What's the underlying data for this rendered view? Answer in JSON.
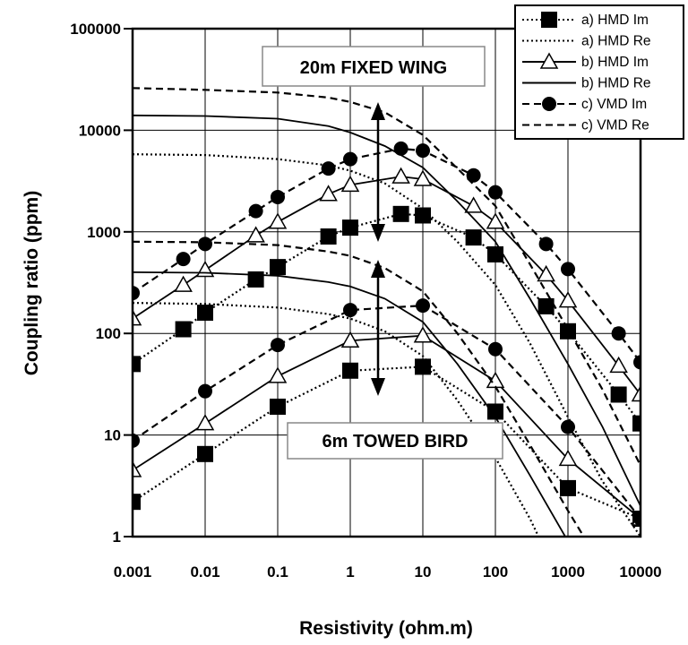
{
  "chart_data": {
    "type": "line",
    "xlabel": "Resistivity (ohm.m)",
    "ylabel": "Coupling ratio (ppm)",
    "xscale": "log",
    "yscale": "log",
    "xlim": [
      0.001,
      10000
    ],
    "ylim": [
      1,
      100000
    ],
    "x_ticks": [
      "0.001",
      "0.01",
      "0.1",
      "1",
      "10",
      "100",
      "1000",
      "10000"
    ],
    "y_ticks": [
      "1",
      "10",
      "100",
      "1000",
      "10000",
      "100000"
    ],
    "grid": true,
    "legend_position": "top-right",
    "annotations": [
      "20m FIXED WING",
      "6m TOWED BIRD"
    ],
    "series": [
      {
        "name": "a) HMD Im",
        "group": "20m FIXED WING",
        "line": "dotted",
        "marker": "filled-square",
        "points": [
          [
            0.001,
            50
          ],
          [
            0.005,
            110
          ],
          [
            0.01,
            160
          ],
          [
            0.05,
            340
          ],
          [
            0.1,
            450
          ],
          [
            0.5,
            900
          ],
          [
            1,
            1100
          ],
          [
            5,
            1500
          ],
          [
            10,
            1450
          ],
          [
            50,
            880
          ],
          [
            100,
            600
          ],
          [
            500,
            185
          ],
          [
            1000,
            105
          ],
          [
            5000,
            25
          ],
          [
            10000,
            13
          ]
        ]
      },
      {
        "name": "a) HMD Re",
        "group": "20m FIXED WING",
        "line": "dotted",
        "marker": "none",
        "points": [
          [
            0.001,
            5800
          ],
          [
            0.01,
            5700
          ],
          [
            0.1,
            5200
          ],
          [
            0.5,
            4500
          ],
          [
            1,
            4000
          ],
          [
            3,
            3000
          ],
          [
            10,
            1700
          ],
          [
            30,
            800
          ],
          [
            100,
            300
          ],
          [
            300,
            80
          ],
          [
            1000,
            15
          ],
          [
            3000,
            3.5
          ],
          [
            10000,
            1
          ]
        ]
      },
      {
        "name": "b) HMD Im",
        "group": "20m FIXED WING",
        "line": "solid",
        "marker": "open-triangle",
        "points": [
          [
            0.001,
            140
          ],
          [
            0.005,
            300
          ],
          [
            0.01,
            420
          ],
          [
            0.05,
            920
          ],
          [
            0.1,
            1250
          ],
          [
            0.5,
            2350
          ],
          [
            1,
            2900
          ],
          [
            5,
            3500
          ],
          [
            10,
            3300
          ],
          [
            50,
            1800
          ],
          [
            100,
            1250
          ],
          [
            500,
            380
          ],
          [
            1000,
            210
          ],
          [
            5000,
            48
          ],
          [
            10000,
            25
          ]
        ]
      },
      {
        "name": "b) HMD Re",
        "group": "20m FIXED WING",
        "line": "solid",
        "marker": "none",
        "points": [
          [
            0.001,
            14000
          ],
          [
            0.01,
            13800
          ],
          [
            0.1,
            13000
          ],
          [
            0.5,
            11000
          ],
          [
            1,
            9500
          ],
          [
            3,
            7000
          ],
          [
            10,
            4300
          ],
          [
            30,
            2000
          ],
          [
            100,
            800
          ],
          [
            300,
            220
          ],
          [
            1000,
            50
          ],
          [
            3000,
            12
          ],
          [
            10000,
            2
          ]
        ]
      },
      {
        "name": "c) VMD Im",
        "group": "20m FIXED WING",
        "line": "dashed",
        "marker": "filled-circle",
        "points": [
          [
            0.001,
            250
          ],
          [
            0.005,
            540
          ],
          [
            0.01,
            760
          ],
          [
            0.05,
            1600
          ],
          [
            0.1,
            2200
          ],
          [
            0.5,
            4200
          ],
          [
            1,
            5200
          ],
          [
            5,
            6600
          ],
          [
            10,
            6300
          ],
          [
            50,
            3600
          ],
          [
            100,
            2450
          ],
          [
            500,
            760
          ],
          [
            1000,
            430
          ],
          [
            5000,
            100
          ],
          [
            10000,
            52
          ]
        ]
      },
      {
        "name": "c) VMD Re",
        "group": "20m FIXED WING",
        "line": "dashed",
        "marker": "none",
        "points": [
          [
            0.001,
            26000
          ],
          [
            0.01,
            25000
          ],
          [
            0.1,
            23500
          ],
          [
            0.5,
            21000
          ],
          [
            1,
            19000
          ],
          [
            3,
            15000
          ],
          [
            10,
            9000
          ],
          [
            30,
            4200
          ],
          [
            100,
            1800
          ],
          [
            300,
            480
          ],
          [
            1000,
            110
          ],
          [
            3000,
            28
          ],
          [
            10000,
            5
          ]
        ]
      },
      {
        "name": "a) HMD Im",
        "group": "6m TOWED BIRD",
        "line": "dotted",
        "marker": "filled-square",
        "points": [
          [
            0.001,
            2.2
          ],
          [
            0.01,
            6.5
          ],
          [
            0.1,
            19
          ],
          [
            1,
            43
          ],
          [
            10,
            47
          ],
          [
            100,
            17
          ],
          [
            1000,
            3
          ],
          [
            10000,
            1.5
          ]
        ]
      },
      {
        "name": "a) HMD Re",
        "group": "6m TOWED BIRD",
        "line": "dotted",
        "marker": "none",
        "points": [
          [
            0.001,
            200
          ],
          [
            0.01,
            195
          ],
          [
            0.1,
            180
          ],
          [
            0.5,
            155
          ],
          [
            1,
            140
          ],
          [
            3,
            105
          ],
          [
            10,
            60
          ],
          [
            30,
            22
          ],
          [
            100,
            6
          ],
          [
            300,
            1.5
          ],
          [
            500,
            0.7
          ]
        ]
      },
      {
        "name": "b) HMD Im",
        "group": "6m TOWED BIRD",
        "line": "solid",
        "marker": "open-triangle",
        "points": [
          [
            0.001,
            4.5
          ],
          [
            0.01,
            13
          ],
          [
            0.1,
            38
          ],
          [
            1,
            85
          ],
          [
            10,
            95
          ],
          [
            100,
            34
          ],
          [
            1000,
            5.8
          ],
          [
            10000,
            1.5
          ]
        ]
      },
      {
        "name": "b) HMD Re",
        "group": "6m TOWED BIRD",
        "line": "solid",
        "marker": "none",
        "points": [
          [
            0.001,
            400
          ],
          [
            0.01,
            395
          ],
          [
            0.1,
            370
          ],
          [
            0.5,
            320
          ],
          [
            1,
            290
          ],
          [
            3,
            220
          ],
          [
            10,
            130
          ],
          [
            30,
            50
          ],
          [
            100,
            15
          ],
          [
            300,
            4
          ],
          [
            1000,
            0.9
          ]
        ]
      },
      {
        "name": "c) VMD Im",
        "group": "6m TOWED BIRD",
        "line": "dashed",
        "marker": "filled-circle",
        "points": [
          [
            0.001,
            8.8
          ],
          [
            0.01,
            27
          ],
          [
            0.1,
            77
          ],
          [
            1,
            170
          ],
          [
            10,
            188
          ],
          [
            100,
            70
          ],
          [
            1000,
            12
          ],
          [
            10000,
            1.5
          ]
        ]
      },
      {
        "name": "c) VMD Re",
        "group": "6m TOWED BIRD",
        "line": "dashed",
        "marker": "none",
        "points": [
          [
            0.001,
            800
          ],
          [
            0.01,
            790
          ],
          [
            0.1,
            740
          ],
          [
            0.5,
            640
          ],
          [
            1,
            580
          ],
          [
            3,
            440
          ],
          [
            10,
            260
          ],
          [
            30,
            100
          ],
          [
            100,
            30
          ],
          [
            300,
            8
          ],
          [
            1000,
            1.8
          ],
          [
            2000,
            0.8
          ]
        ]
      }
    ]
  }
}
